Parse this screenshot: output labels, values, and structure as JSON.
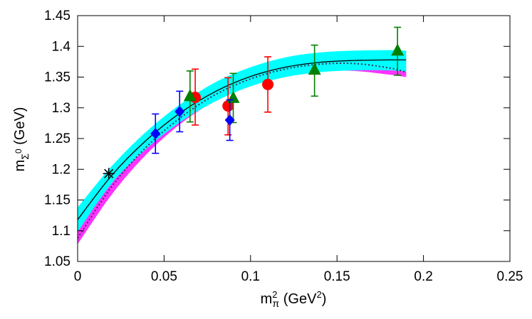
{
  "chart_data": {
    "type": "scatter",
    "xlabel": "m_π^2 (GeV^2)",
    "ylabel": "m_Σ^0 (GeV)",
    "xlabel_parts": {
      "base": "m",
      "sup": "2",
      "sub": "π",
      "unit_open": " (GeV",
      "unit_sup": "2",
      "unit_close": ")"
    },
    "ylabel_parts": {
      "base": "m",
      "sub": "Σ",
      "subsup": "0",
      "unit": " (GeV)"
    },
    "xlim": [
      0,
      0.25
    ],
    "ylim": [
      1.05,
      1.45
    ],
    "xticks": [
      "0",
      "0.05",
      "0.1",
      "0.15",
      "0.2",
      "0.25"
    ],
    "yticks": [
      "1.05",
      "1.1",
      "1.15",
      "1.2",
      "1.25",
      "1.3",
      "1.35",
      "1.4",
      "1.45"
    ],
    "grid": false,
    "colors": {
      "red": "#ff0000",
      "green": "#008000",
      "blue": "#0000ff",
      "cyan": "#00ffff",
      "magenta": "#ff33ff",
      "black": "#000000"
    },
    "series": [
      {
        "marker": "circle",
        "color": "#ff0000",
        "points": [
          {
            "x": 0.068,
            "y": 1.317,
            "ylo": 1.272,
            "yhi": 1.363
          },
          {
            "x": 0.087,
            "y": 1.303,
            "ylo": 1.256,
            "yhi": 1.349
          },
          {
            "x": 0.11,
            "y": 1.338,
            "ylo": 1.293,
            "yhi": 1.383
          }
        ]
      },
      {
        "marker": "triangle",
        "color": "#008000",
        "points": [
          {
            "x": 0.065,
            "y": 1.319,
            "ylo": 1.277,
            "yhi": 1.36
          },
          {
            "x": 0.09,
            "y": 1.316,
            "ylo": 1.276,
            "yhi": 1.356
          },
          {
            "x": 0.137,
            "y": 1.362,
            "ylo": 1.319,
            "yhi": 1.402
          },
          {
            "x": 0.185,
            "y": 1.393,
            "ylo": 1.353,
            "yhi": 1.431
          }
        ]
      },
      {
        "marker": "diamond",
        "color": "#0000ff",
        "points": [
          {
            "x": 0.045,
            "y": 1.258,
            "ylo": 1.226,
            "yhi": 1.29
          },
          {
            "x": 0.059,
            "y": 1.294,
            "ylo": 1.261,
            "yhi": 1.327
          },
          {
            "x": 0.088,
            "y": 1.28,
            "ylo": 1.247,
            "yhi": 1.313
          }
        ]
      },
      {
        "marker": "star",
        "color": "#000000",
        "points": [
          {
            "x": 0.018,
            "y": 1.193
          }
        ]
      }
    ],
    "fit_curves": [
      {
        "style": "solid",
        "color": "#000000",
        "x": [
          0,
          0.02,
          0.04,
          0.06,
          0.08,
          0.1,
          0.12,
          0.14,
          0.16,
          0.18,
          0.19
        ],
        "y": [
          1.118,
          1.191,
          1.248,
          1.293,
          1.327,
          1.351,
          1.366,
          1.374,
          1.377,
          1.378,
          1.378
        ]
      },
      {
        "style": "dotted",
        "color": "#000000",
        "x": [
          0,
          0.02,
          0.04,
          0.06,
          0.08,
          0.1,
          0.12,
          0.14,
          0.16,
          0.18,
          0.19
        ],
        "y": [
          1.088,
          1.173,
          1.237,
          1.285,
          1.322,
          1.347,
          1.363,
          1.371,
          1.372,
          1.365,
          1.358
        ]
      }
    ],
    "error_bands": [
      {
        "color": "#ff33ff",
        "x": [
          0,
          0.02,
          0.04,
          0.06,
          0.08,
          0.1,
          0.12,
          0.14,
          0.16,
          0.18,
          0.19
        ],
        "lower": [
          1.078,
          1.16,
          1.225,
          1.275,
          1.312,
          1.337,
          1.352,
          1.36,
          1.36,
          1.354,
          1.35
        ],
        "upper": [
          1.1,
          1.185,
          1.248,
          1.296,
          1.332,
          1.357,
          1.373,
          1.381,
          1.382,
          1.376,
          1.368
        ]
      },
      {
        "color": "#00ffff",
        "x": [
          0,
          0.02,
          0.04,
          0.06,
          0.08,
          0.1,
          0.12,
          0.14,
          0.16,
          0.18,
          0.19
        ],
        "lower": [
          1.098,
          1.178,
          1.234,
          1.278,
          1.311,
          1.335,
          1.35,
          1.358,
          1.361,
          1.361,
          1.359
        ],
        "upper": [
          1.138,
          1.206,
          1.262,
          1.307,
          1.342,
          1.366,
          1.382,
          1.39,
          1.393,
          1.394,
          1.393
        ]
      }
    ]
  }
}
